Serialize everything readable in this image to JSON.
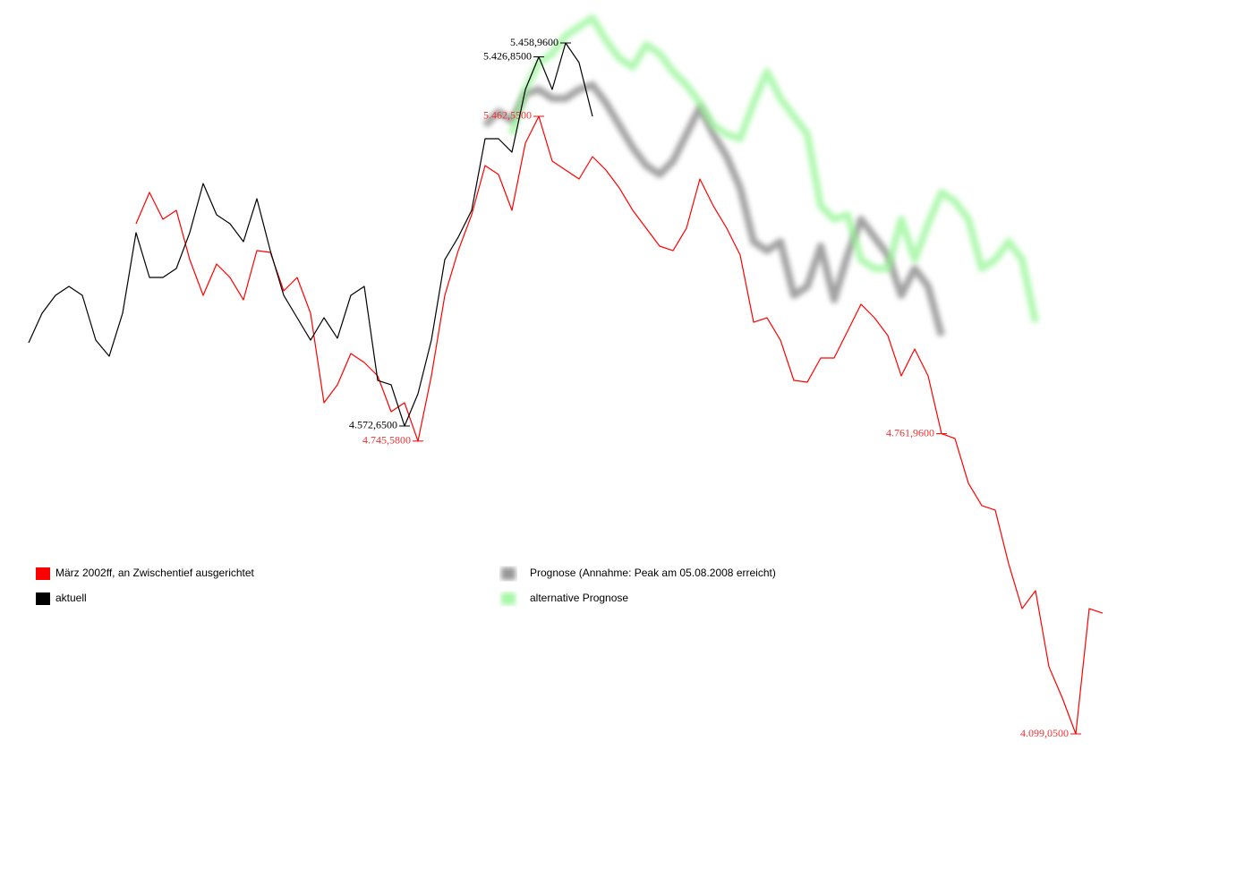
{
  "chart_data": {
    "type": "line",
    "categories": [
      null,
      null,
      null,
      null,
      null,
      null,
      null,
      null,
      null,
      null,
      null,
      null,
      null,
      null,
      null,
      null,
      null,
      null,
      null,
      null,
      null,
      null,
      null,
      null,
      null,
      null,
      null,
      null,
      null,
      null,
      null,
      null,
      null,
      null,
      null,
      null,
      null,
      null,
      null,
      null,
      null,
      null,
      null,
      null,
      null,
      null,
      null,
      null,
      null,
      null,
      null,
      null,
      null,
      null,
      null,
      null,
      null,
      null,
      null,
      null,
      null,
      null,
      null,
      null,
      null,
      null,
      null,
      null,
      null,
      null,
      null,
      null,
      null,
      null,
      null,
      null,
      null,
      null,
      null,
      null,
      null
    ],
    "series": [
      {
        "name": "März 2002ff, an Zwischentief ausgerichtet",
        "color": "#ff0000",
        "ylim": [
          3743.4,
          5719.4
        ],
        "values": [
          null,
          null,
          null,
          null,
          null,
          null,
          null,
          null,
          5225.4,
          5294.6,
          5235.3,
          5255.0,
          5146.4,
          5067.3,
          5136.5,
          5106.8,
          5057.4,
          5166.1,
          5162.2,
          5077.2,
          5106.8,
          5027.8,
          4830.2,
          4869.7,
          4938.9,
          4919.1,
          4889.5,
          4810.4,
          4830.2,
          4745.58,
          4889.5,
          5067.3,
          5166.1,
          5245.2,
          5353.8,
          5334.1,
          5255.0,
          5403.2,
          5462.55,
          5363.7,
          5344.0,
          5324.2,
          5373.6,
          5344.0,
          5304.4,
          5255.0,
          5215.5,
          5176.0,
          5166.1,
          5215.5,
          5324.2,
          5264.9,
          5215.5,
          5156.2,
          5008.0,
          5017.9,
          4968.5,
          4879.6,
          4875.6,
          4929.0,
          4929.0,
          4988.3,
          5047.6,
          5017.9,
          4978.4,
          4889.5,
          4948.8,
          4889.5,
          4761.96,
          4751.2,
          4652.4,
          4603.0,
          4593.1,
          4474.5,
          4375.7,
          4415.2,
          4247.4,
          4178.1,
          4099.05,
          4375.7,
          4365.8
        ],
        "value_labels": [
          null,
          null,
          null,
          null,
          null,
          null,
          null,
          null,
          null,
          null,
          null,
          null,
          null,
          null,
          null,
          null,
          null,
          null,
          null,
          null,
          null,
          null,
          null,
          null,
          null,
          null,
          null,
          null,
          null,
          "4.745,5800",
          null,
          null,
          null,
          null,
          null,
          null,
          null,
          null,
          "5.462,5500",
          null,
          null,
          null,
          null,
          null,
          null,
          null,
          null,
          null,
          null,
          null,
          null,
          null,
          null,
          null,
          null,
          null,
          null,
          null,
          null,
          null,
          null,
          null,
          null,
          null,
          null,
          null,
          null,
          null,
          "4.761,9600",
          null,
          null,
          null,
          null,
          null,
          null,
          null,
          null,
          null,
          "4.099,0500",
          null,
          null
        ]
      },
      {
        "name": "aktuell",
        "color": "#000000",
        "ylim": [
          3487.4,
          5558.4
        ],
        "values": [
          4765.2,
          4833.6,
          4875.0,
          4895.7,
          4875.0,
          4771.4,
          4734.1,
          4833.6,
          5020.0,
          4916.4,
          4916.4,
          4937.1,
          5020.0,
          5133.8,
          5061.4,
          5040.6,
          4999.2,
          5098.6,
          4978.5,
          4875.0,
          4823.2,
          4771.4,
          4823.2,
          4775.6,
          4875.0,
          4895.7,
          4678.2,
          4667.9,
          4572.65,
          4647.2,
          4771.4,
          4957.8,
          5009.6,
          5071.7,
          5237.4,
          5237.4,
          5206.3,
          5351.3,
          5426.85,
          5351.3,
          5458.96,
          5413.4,
          5289.2,
          null,
          null,
          null,
          null,
          null,
          null,
          null,
          null,
          null,
          null,
          null,
          null,
          null,
          null,
          null,
          null,
          null,
          null,
          null,
          null,
          null,
          null,
          null,
          null,
          null,
          null,
          null,
          null,
          null,
          null,
          null,
          null,
          null,
          null,
          null,
          null,
          null,
          null
        ],
        "value_labels": [
          null,
          null,
          null,
          null,
          null,
          null,
          null,
          null,
          null,
          null,
          null,
          null,
          null,
          null,
          null,
          null,
          null,
          null,
          null,
          null,
          null,
          null,
          null,
          null,
          null,
          null,
          null,
          null,
          "4.572,6500",
          null,
          null,
          null,
          null,
          null,
          null,
          null,
          null,
          null,
          "5.426,8500",
          null,
          "5.458,9600",
          null,
          null,
          null,
          null,
          null,
          null,
          null,
          null,
          null,
          null,
          null,
          null,
          null,
          null,
          null,
          null,
          null,
          null,
          null,
          null,
          null,
          null,
          null,
          null,
          null,
          null,
          null,
          null,
          null,
          null,
          null,
          null,
          null,
          null,
          null,
          null,
          null,
          null,
          null,
          null
        ]
      },
      {
        "name": "Prognose (Annahme: Peak am 05.08.2008 erreicht)",
        "color": "#7a7a7a",
        "blur": true,
        "ylim": [
          3487.4,
          5558.4
        ],
        "values": [
          null,
          null,
          null,
          null,
          null,
          null,
          null,
          null,
          null,
          null,
          null,
          null,
          null,
          null,
          null,
          null,
          null,
          null,
          null,
          null,
          null,
          null,
          null,
          null,
          null,
          null,
          null,
          null,
          null,
          null,
          null,
          null,
          null,
          null,
          5268.5,
          5299.5,
          5278.8,
          5341.3,
          5351.3,
          5330.6,
          5330.6,
          5351.3,
          5361.7,
          5320.2,
          5268.5,
          5216.7,
          5175.3,
          5154.6,
          5185.6,
          5247.8,
          5309.9,
          5247.8,
          5196.0,
          5123.5,
          4999.2,
          4978.5,
          4999.2,
          4875.0,
          4895.7,
          4988.9,
          4864.6,
          4968.2,
          5051.0,
          5009.6,
          4968.2,
          4875.0,
          4937.1,
          4895.7,
          4781.8,
          null,
          null,
          null,
          null,
          null,
          null,
          null,
          null,
          null,
          null,
          null,
          null
        ]
      },
      {
        "name": "alternative Prognose",
        "color": "#8ff58f",
        "blur": true,
        "ylim": [
          3487.4,
          5558.4
        ],
        "values": [
          null,
          null,
          null,
          null,
          null,
          null,
          null,
          null,
          null,
          null,
          null,
          null,
          null,
          null,
          null,
          null,
          null,
          null,
          null,
          null,
          null,
          null,
          null,
          null,
          null,
          null,
          null,
          null,
          null,
          null,
          null,
          null,
          null,
          null,
          null,
          null,
          5247.8,
          5351.3,
          5413.4,
          5434.1,
          5475.6,
          5496.3,
          5517.0,
          5465.2,
          5423.8,
          5403.1,
          5454.9,
          5434.1,
          5392.7,
          5361.7,
          5320.2,
          5268.5,
          5247.8,
          5237.4,
          5320.2,
          5392.7,
          5330.6,
          5289.2,
          5247.8,
          5082.1,
          5051.0,
          5061.4,
          4957.8,
          4937.1,
          4937.1,
          5051.0,
          4957.8,
          5040.6,
          5113.1,
          5092.4,
          5051.0,
          4937.1,
          4957.8,
          4999.2,
          4957.8,
          4812.8,
          null,
          null,
          null,
          null,
          null
        ]
      }
    ]
  }
}
